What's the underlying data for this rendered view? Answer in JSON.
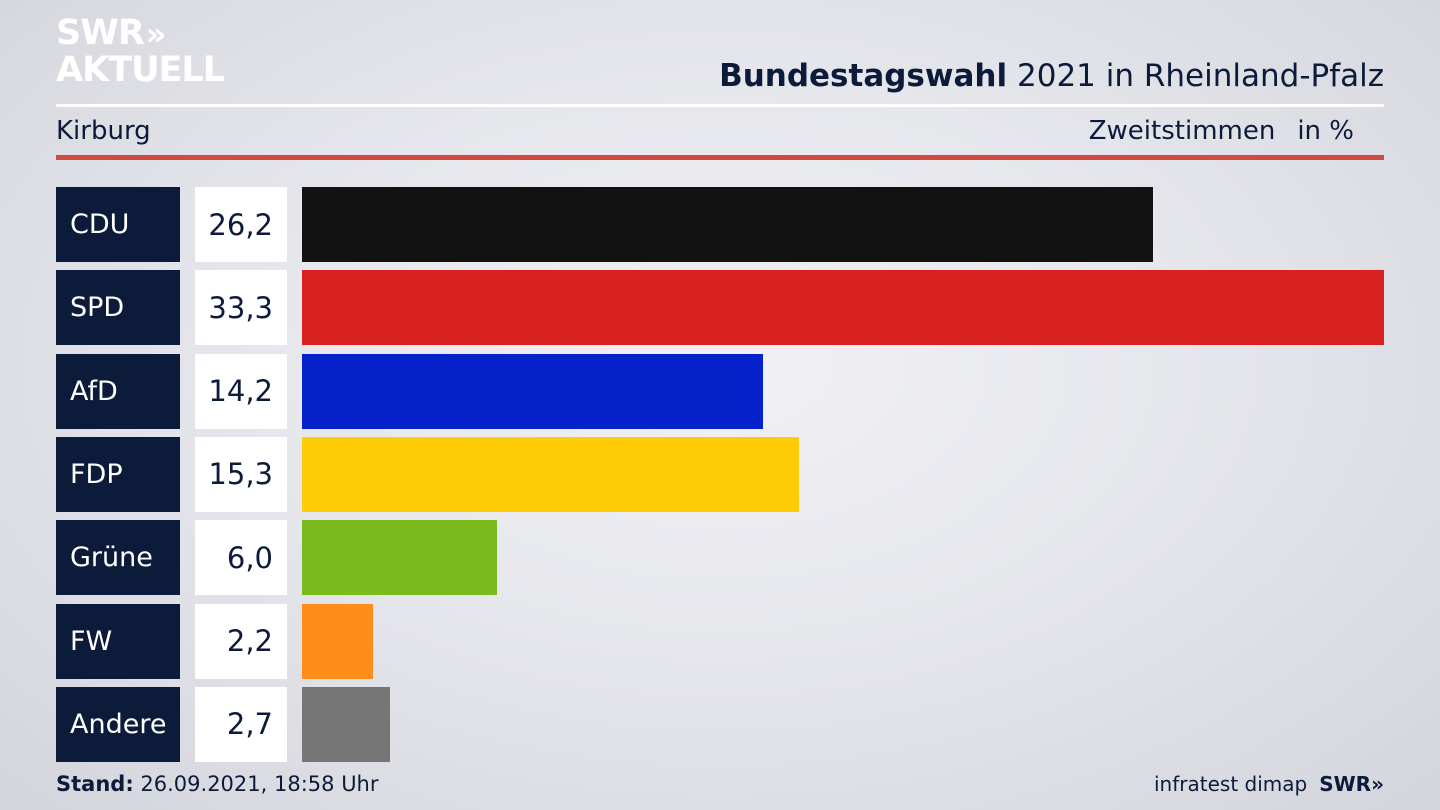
{
  "logo": {
    "line1": "SWR",
    "chevrons": "»",
    "line2": "AKTUELL"
  },
  "header": {
    "title_bold": "Bundestagswahl",
    "title_rest": "2021 in Rheinland-Pfalz",
    "location": "Kirburg",
    "measure": "Zweitstimmen",
    "unit": "in %"
  },
  "chart_data": {
    "type": "bar",
    "orientation": "horizontal",
    "categories": [
      "CDU",
      "SPD",
      "AfD",
      "FDP",
      "Grüne",
      "FW",
      "Andere"
    ],
    "values": [
      26.2,
      33.3,
      14.2,
      15.3,
      6.0,
      2.2,
      2.7
    ],
    "value_labels": [
      "26,2",
      "33,3",
      "14,2",
      "15,3",
      "6,0",
      "2,2",
      "2,7"
    ],
    "colors": [
      "#121212",
      "#d82020",
      "#0521c9",
      "#ffcc09",
      "#7aba1c",
      "#ff8d19",
      "#767676"
    ],
    "xlim": [
      0,
      33.3
    ],
    "grid": false,
    "legend": "none"
  },
  "footer": {
    "stand_label": "Stand:",
    "stand_value": "26.09.2021, 18:58 Uhr",
    "source": "infratest dimap",
    "brand": "SWR»"
  }
}
